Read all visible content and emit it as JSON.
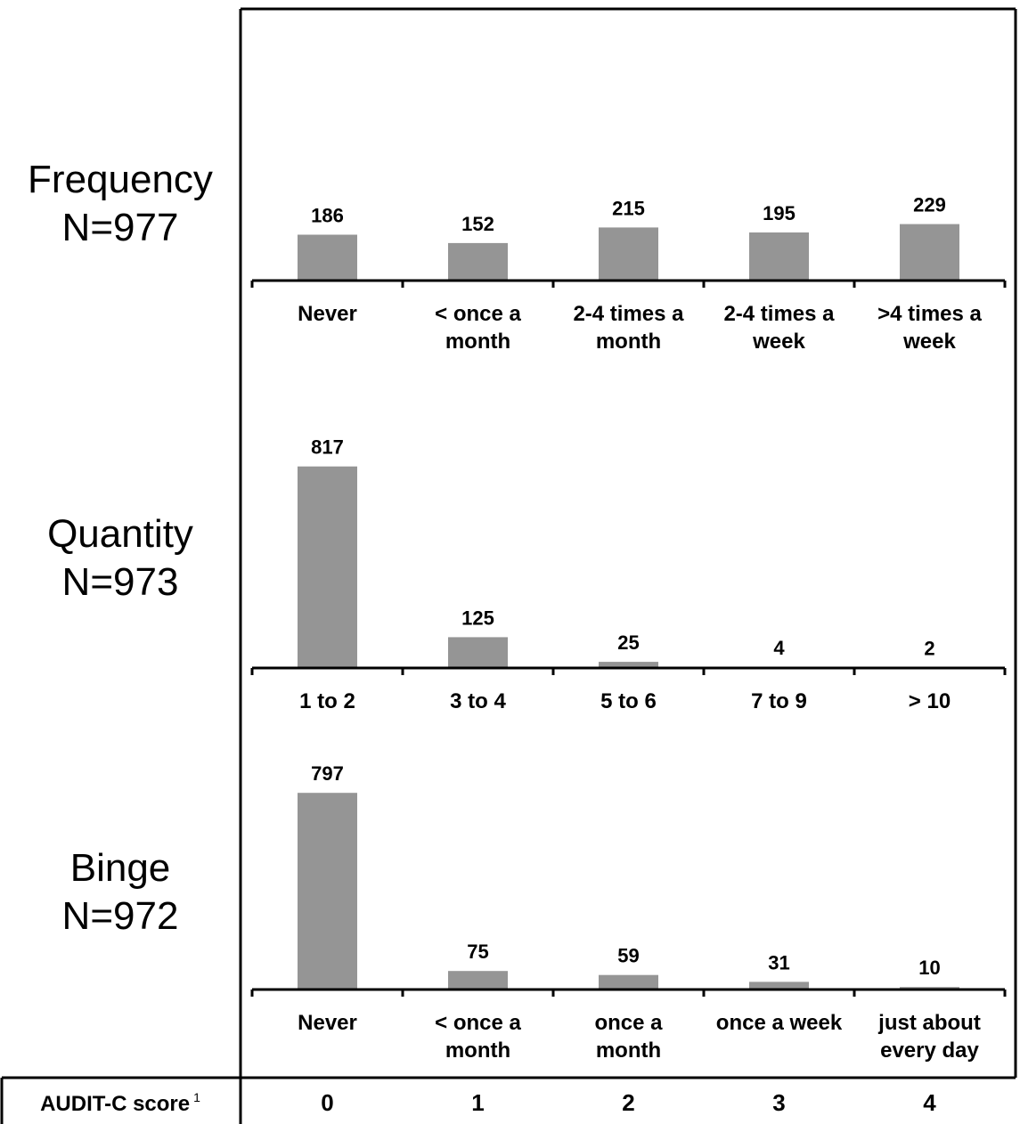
{
  "chart_data": [
    {
      "type": "bar",
      "panel": "Frequency",
      "title": "Frequency",
      "n_label": "N=977",
      "categories": [
        "Never",
        "< once a month",
        "2-4 times a month",
        "2-4 times a week",
        ">4 times a week"
      ],
      "category_lines": [
        [
          "Never"
        ],
        [
          "< once a",
          "month"
        ],
        [
          "2-4 times a",
          "month"
        ],
        [
          "2-4 times a",
          "week"
        ],
        [
          ">4 times a",
          "week"
        ]
      ],
      "values": [
        186,
        152,
        215,
        195,
        229
      ],
      "bar_color": "#959595",
      "grid": false
    },
    {
      "type": "bar",
      "panel": "Quantity",
      "title": "Quantity",
      "n_label": "N=973",
      "categories": [
        "1 to 2",
        "3 to 4",
        "5 to 6",
        "7 to 9",
        "> 10"
      ],
      "category_lines": [
        [
          "1 to 2"
        ],
        [
          "3 to 4"
        ],
        [
          "5 to 6"
        ],
        [
          "7 to 9"
        ],
        [
          "> 10"
        ]
      ],
      "values": [
        817,
        125,
        25,
        4,
        2
      ],
      "bar_color": "#959595",
      "grid": false
    },
    {
      "type": "bar",
      "panel": "Binge",
      "title": "Binge",
      "n_label": "N=972",
      "categories": [
        "Never",
        "< once a month",
        "once a month",
        "once a week",
        "just about every day"
      ],
      "category_lines": [
        [
          "Never"
        ],
        [
          "< once a",
          "month"
        ],
        [
          "once a",
          "month"
        ],
        [
          "once a week"
        ],
        [
          "just about",
          "every day"
        ]
      ],
      "values": [
        797,
        75,
        59,
        31,
        10
      ],
      "bar_color": "#959595",
      "grid": false
    }
  ],
  "score_row": {
    "label": "AUDIT-C score",
    "superscript": "1",
    "scores": [
      "0",
      "1",
      "2",
      "3",
      "4"
    ]
  }
}
